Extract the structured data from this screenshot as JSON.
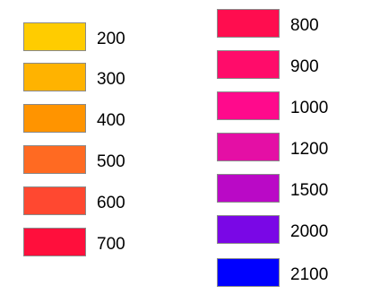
{
  "legend": {
    "columns": [
      {
        "items": [
          {
            "label": "200",
            "color": "#FFCC00"
          },
          {
            "label": "300",
            "color": "#FFB300"
          },
          {
            "label": "400",
            "color": "#FF9400"
          },
          {
            "label": "500",
            "color": "#FF6A22"
          },
          {
            "label": "600",
            "color": "#FF4830"
          },
          {
            "label": "700",
            "color": "#FF0F3C"
          }
        ]
      },
      {
        "items": [
          {
            "label": "800",
            "color": "#FF0D4F"
          },
          {
            "label": "900",
            "color": "#FF0C6A"
          },
          {
            "label": "1000",
            "color": "#FF0A8C"
          },
          {
            "label": "1200",
            "color": "#E40FA5"
          },
          {
            "label": "1500",
            "color": "#BA09C6"
          },
          {
            "label": "2000",
            "color": "#7A07E6"
          },
          {
            "label": "2100",
            "color": "#0000FF"
          }
        ]
      }
    ]
  }
}
